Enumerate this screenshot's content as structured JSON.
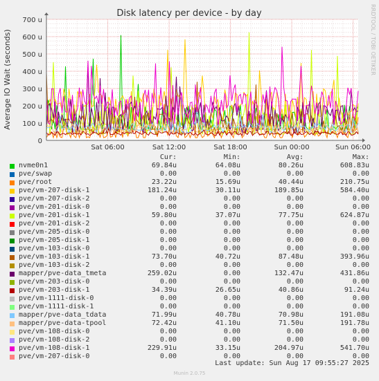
{
  "chart_data": {
    "type": "line",
    "title": "Disk latency per device - by day",
    "ylabel": "Average IO Wait (seconds)",
    "ylim": [
      0,
      700
    ],
    "yticks": [
      {
        "v": 0,
        "label": "0"
      },
      {
        "v": 100,
        "label": "100 u"
      },
      {
        "v": 200,
        "label": "200 u"
      },
      {
        "v": 300,
        "label": "300 u"
      },
      {
        "v": 400,
        "label": "400 u"
      },
      {
        "v": 500,
        "label": "500 u"
      },
      {
        "v": 600,
        "label": "600 u"
      },
      {
        "v": 700,
        "label": "700 u"
      }
    ],
    "xlim": [
      0,
      30.5
    ],
    "xticks": [
      {
        "v": 6,
        "label": "Sat 06:00"
      },
      {
        "v": 12,
        "label": "Sat 12:00"
      },
      {
        "v": 18,
        "label": "Sat 18:00"
      },
      {
        "v": 24,
        "label": "Sun 00:00"
      },
      {
        "v": 30,
        "label": "Sun 06:00"
      }
    ],
    "grid": true,
    "side_label": "RRDTOOL / TOBI OETIKER",
    "columns": [
      "Cur:",
      "Min:",
      "Avg:",
      "Max:"
    ],
    "series": [
      {
        "name": "nvme0n1",
        "color": "#00cc00",
        "cur": "69.84u",
        "min": "64.08u",
        "avg": "80.26u",
        "max": "608.83u"
      },
      {
        "name": "pve/swap",
        "color": "#0066b3",
        "cur": "0.00",
        "min": "0.00",
        "avg": "0.00",
        "max": "0.00"
      },
      {
        "name": "pve/root",
        "color": "#ff8000",
        "cur": "23.22u",
        "min": "15.69u",
        "avg": "40.44u",
        "max": "210.75u"
      },
      {
        "name": "pve/vm-207-disk-1",
        "color": "#ffcc00",
        "cur": "181.24u",
        "min": "30.11u",
        "avg": "189.85u",
        "max": "584.40u"
      },
      {
        "name": "pve/vm-207-disk-2",
        "color": "#330099",
        "cur": "0.00",
        "min": "0.00",
        "avg": "0.00",
        "max": "0.00"
      },
      {
        "name": "pve/vm-201-disk-0",
        "color": "#990099",
        "cur": "0.00",
        "min": "0.00",
        "avg": "0.00",
        "max": "0.00"
      },
      {
        "name": "pve/vm-201-disk-1",
        "color": "#ccff00",
        "cur": "59.80u",
        "min": "37.07u",
        "avg": "77.75u",
        "max": "624.87u"
      },
      {
        "name": "pve/vm-201-disk-2",
        "color": "#ff0000",
        "cur": "0.00",
        "min": "0.00",
        "avg": "0.00",
        "max": "0.00"
      },
      {
        "name": "pve/vm-205-disk-0",
        "color": "#808080",
        "cur": "0.00",
        "min": "0.00",
        "avg": "0.00",
        "max": "0.00"
      },
      {
        "name": "pve/vm-205-disk-1",
        "color": "#008f00",
        "cur": "0.00",
        "min": "0.00",
        "avg": "0.00",
        "max": "0.00"
      },
      {
        "name": "pve/vm-103-disk-0",
        "color": "#00487d",
        "cur": "0.00",
        "min": "0.00",
        "avg": "0.00",
        "max": "0.00"
      },
      {
        "name": "pve/vm-103-disk-1",
        "color": "#b35a00",
        "cur": "73.70u",
        "min": "40.72u",
        "avg": "87.48u",
        "max": "393.96u"
      },
      {
        "name": "pve/vm-103-disk-2",
        "color": "#b38f00",
        "cur": "0.00",
        "min": "0.00",
        "avg": "0.00",
        "max": "0.00"
      },
      {
        "name": "mapper/pve-data_tmeta",
        "color": "#6b006b",
        "cur": "259.02u",
        "min": "0.00",
        "avg": "132.47u",
        "max": "431.86u"
      },
      {
        "name": "pve/vm-203-disk-0",
        "color": "#8fb300",
        "cur": "0.00",
        "min": "0.00",
        "avg": "0.00",
        "max": "0.00"
      },
      {
        "name": "pve/vm-203-disk-1",
        "color": "#b30000",
        "cur": "34.39u",
        "min": "26.65u",
        "avg": "40.86u",
        "max": "91.24u"
      },
      {
        "name": "pve/vm-1111-disk-0",
        "color": "#bebebe",
        "cur": "0.00",
        "min": "0.00",
        "avg": "0.00",
        "max": "0.00"
      },
      {
        "name": "pve/vm-1111-disk-1",
        "color": "#80ff80",
        "cur": "0.00",
        "min": "0.00",
        "avg": "0.00",
        "max": "0.00"
      },
      {
        "name": "mapper/pve-data_tdata",
        "color": "#80c9ff",
        "cur": "71.99u",
        "min": "40.78u",
        "avg": "70.98u",
        "max": "191.08u"
      },
      {
        "name": "mapper/pve-data-tpool",
        "color": "#ffc080",
        "cur": "72.42u",
        "min": "41.10u",
        "avg": "71.50u",
        "max": "191.78u"
      },
      {
        "name": "pve/vm-108-disk-0",
        "color": "#ffe680",
        "cur": "0.00",
        "min": "0.00",
        "avg": "0.00",
        "max": "0.00"
      },
      {
        "name": "pve/vm-108-disk-2",
        "color": "#aa80ff",
        "cur": "0.00",
        "min": "0.00",
        "avg": "0.00",
        "max": "0.00"
      },
      {
        "name": "pve/vm-108-disk-1",
        "color": "#ee00cc",
        "cur": "229.91u",
        "min": "33.15u",
        "avg": "204.97u",
        "max": "541.70u"
      },
      {
        "name": "pve/vm-207-disk-0",
        "color": "#ff8080",
        "cur": "0.00",
        "min": "0.00",
        "avg": "0.00",
        "max": "0.00"
      }
    ],
    "last_update": "Last update: Sun Aug 17 09:55:27 2025",
    "footer": "Munin 2.0.75"
  }
}
